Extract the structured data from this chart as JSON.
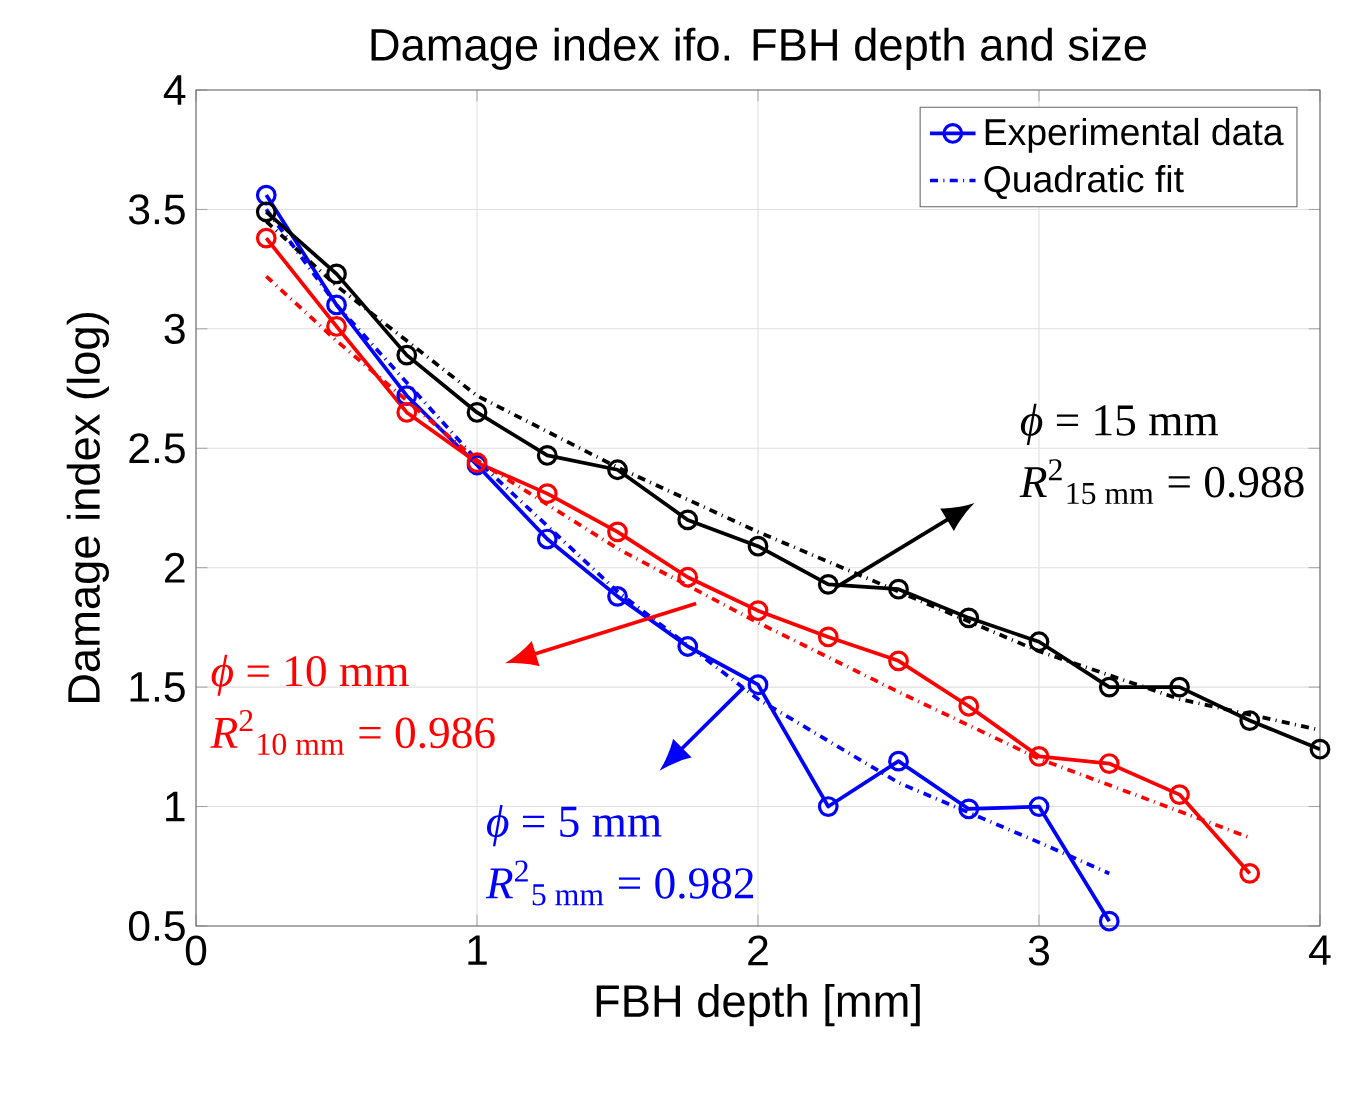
{
  "chart_data": {
    "type": "line",
    "title": "Damage index ifo. FBH depth and size",
    "xlabel": "FBH depth [mm]",
    "ylabel": "Damage index (log)",
    "xlim": [
      0,
      4
    ],
    "ylim": [
      0.5,
      4
    ],
    "xticks": [
      0,
      1,
      2,
      3,
      4
    ],
    "yticks": [
      0.5,
      1,
      1.5,
      2,
      2.5,
      3,
      3.5,
      4
    ],
    "grid": true,
    "legend": "top right",
    "series": [
      {
        "name": "Experimental data",
        "color": "#0000ff",
        "marker": "circle",
        "line_style": "solid",
        "x": [
          0.25,
          0.5,
          0.75,
          1,
          1.25,
          1.5,
          1.75,
          2,
          2.25,
          2.5,
          2.75,
          3,
          3.25
        ],
        "values": [
          3.56,
          3.1,
          2.72,
          2.43,
          2.12,
          1.88,
          1.67,
          1.51,
          1.0,
          1.19,
          0.99,
          1.0,
          0.52
        ]
      },
      {
        "name": "Quadratic fit",
        "color": "#0000ff",
        "marker": "none",
        "line_style": "dashdot",
        "x": [
          0.25,
          0.5,
          1,
          1.5,
          2,
          2.5,
          3,
          3.25
        ],
        "values": [
          3.5,
          3.1,
          2.45,
          1.9,
          1.45,
          1.1,
          0.85,
          0.72
        ]
      },
      {
        "color": "#ff0000",
        "marker": "circle",
        "line_style": "solid",
        "x": [
          0.25,
          0.5,
          0.75,
          1,
          1.25,
          1.5,
          1.75,
          2,
          2.25,
          2.5,
          2.75,
          3,
          3.25,
          3.5,
          3.75
        ],
        "values": [
          3.38,
          3.01,
          2.65,
          2.44,
          2.31,
          2.15,
          1.96,
          1.82,
          1.71,
          1.61,
          1.42,
          1.21,
          1.18,
          1.05,
          0.72
        ]
      },
      {
        "color": "#ff0000",
        "marker": "none",
        "line_style": "dashdot",
        "x": [
          0.25,
          0.5,
          1,
          1.5,
          2,
          2.5,
          3,
          3.5,
          3.75
        ],
        "values": [
          3.22,
          2.95,
          2.45,
          2.08,
          1.77,
          1.48,
          1.2,
          0.98,
          0.87
        ]
      },
      {
        "color": "#000000",
        "marker": "circle",
        "line_style": "solid",
        "x": [
          0.25,
          0.5,
          0.75,
          1,
          1.25,
          1.5,
          1.75,
          2,
          2.25,
          2.5,
          2.75,
          3,
          3.25,
          3.5,
          3.75,
          4
        ],
        "values": [
          3.49,
          3.23,
          2.89,
          2.65,
          2.47,
          2.41,
          2.2,
          2.09,
          1.93,
          1.91,
          1.79,
          1.69,
          1.5,
          1.5,
          1.36,
          1.24
        ]
      },
      {
        "color": "#000000",
        "marker": "none",
        "line_style": "dashdot",
        "x": [
          0.25,
          0.5,
          0.75,
          1,
          1.5,
          2,
          2.5,
          3,
          3.5,
          4
        ],
        "values": [
          3.45,
          3.18,
          2.95,
          2.72,
          2.42,
          2.15,
          1.9,
          1.65,
          1.45,
          1.32
        ]
      }
    ],
    "annotations": [
      "*ϕ* = 15 mm",
      "*R*$^{2}$$_{15 mm}$ = 0.988",
      "*ϕ* = 10 mm",
      "*R*$^{2}$$_{10 mm}$ = 0.986",
      "*ϕ* = 5 mm",
      "*R*$^{2}$$_{5 mm}$ = 0.982"
    ]
  }
}
